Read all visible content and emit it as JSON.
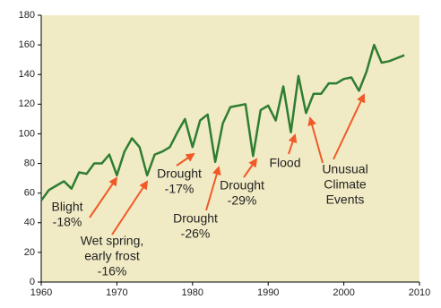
{
  "chart_data": {
    "type": "line",
    "x": [
      1960,
      1961,
      1962,
      1963,
      1964,
      1965,
      1966,
      1967,
      1968,
      1969,
      1970,
      1971,
      1972,
      1973,
      1974,
      1975,
      1976,
      1977,
      1978,
      1979,
      1980,
      1981,
      1982,
      1983,
      1984,
      1985,
      1986,
      1987,
      1988,
      1989,
      1990,
      1991,
      1992,
      1993,
      1994,
      1995,
      1996,
      1997,
      1998,
      1999,
      2000,
      2001,
      2002,
      2003,
      2004,
      2005,
      2006,
      2007,
      2008
    ],
    "series": [
      {
        "color": "#2e7d32",
        "values": [
          55,
          62,
          65,
          68,
          63,
          74,
          73,
          80,
          80,
          86,
          72,
          88,
          97,
          91,
          72,
          86,
          88,
          91,
          101,
          110,
          91,
          109,
          113,
          81,
          107,
          118,
          119,
          120,
          85,
          116,
          119,
          109,
          132,
          101,
          139,
          114,
          127,
          127,
          134,
          134,
          137,
          138,
          129,
          142,
          160,
          148,
          149,
          151,
          153
        ]
      }
    ],
    "xlim": [
      1960,
      2010
    ],
    "xticks": [
      1960,
      1970,
      1980,
      1990,
      2000,
      2010
    ],
    "ylim": [
      0,
      180
    ],
    "yticks": [
      0,
      20,
      40,
      60,
      80,
      100,
      120,
      140,
      160,
      180
    ],
    "background": "#f1ebc5",
    "annotations": [
      {
        "lines": [
          "Blight",
          "-18%"
        ],
        "color": "#111111"
      },
      {
        "lines": [
          "Wet spring,",
          "early frost",
          "-16%"
        ],
        "color": "#2a7fc0"
      },
      {
        "lines": [
          "Drought",
          "-17%"
        ],
        "color": "#8b4a2b"
      },
      {
        "lines": [
          "Drought",
          "-26%"
        ],
        "color": "#8b4a2b"
      },
      {
        "lines": [
          "Drought",
          "-29%"
        ],
        "color": "#8b4a2b"
      },
      {
        "lines": [
          "Flood"
        ],
        "color": "#2e8b2e"
      },
      {
        "lines": [
          "Unusual",
          "Climate",
          "Events"
        ],
        "color": "#b03a2e"
      }
    ]
  }
}
